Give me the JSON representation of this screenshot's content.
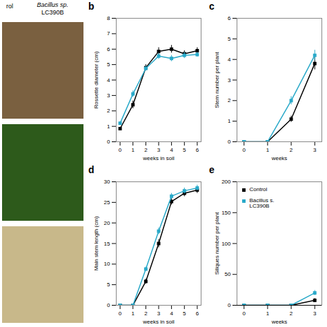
{
  "chart_data": [
    {
      "type": "line",
      "title": "b",
      "xlabel": "weeks in soil",
      "ylabel": "Rossette diameter (cm)",
      "x": [
        0,
        1,
        2,
        3,
        4,
        5,
        6
      ],
      "xlim": [
        -0.3,
        6.3
      ],
      "xticks": [
        0,
        1,
        2,
        3,
        4,
        5,
        6
      ],
      "ylim": [
        0,
        8
      ],
      "yticks": [
        0,
        1,
        2,
        3,
        4,
        5,
        6,
        7,
        8
      ],
      "marker": "square",
      "series": [
        {
          "name": "Control",
          "color": "#000000",
          "values": [
            0.85,
            2.4,
            4.8,
            5.85,
            6.0,
            5.7,
            5.9
          ],
          "errors": [
            0.1,
            0.25,
            0.2,
            0.25,
            0.25,
            0.2,
            0.2
          ]
        },
        {
          "name": "Bacillus s.\nLC390B",
          "color": "#29a9c9",
          "values": [
            1.2,
            3.1,
            4.75,
            5.55,
            5.4,
            5.6,
            5.65
          ],
          "errors": [
            0.1,
            0.2,
            0.15,
            0.2,
            0.2,
            0.2,
            0.15
          ]
        }
      ]
    },
    {
      "type": "line",
      "title": "c",
      "xlabel": "weeks",
      "ylabel": "Stem number per plant",
      "x": [
        0,
        1,
        2,
        3
      ],
      "xlim": [
        -0.3,
        3.3
      ],
      "xticks": [
        0,
        1,
        2,
        3
      ],
      "ylim": [
        0,
        6
      ],
      "yticks": [
        0,
        1,
        2,
        3,
        4,
        5,
        6
      ],
      "marker": "square",
      "series": [
        {
          "name": "Control",
          "color": "#000000",
          "values": [
            0.0,
            0.0,
            1.1,
            3.8
          ],
          "errors": [
            0.0,
            0.0,
            0.15,
            0.3
          ]
        },
        {
          "name": "Bacillus s.\nLC390B",
          "color": "#29a9c9",
          "values": [
            0.0,
            0.0,
            2.0,
            4.2
          ],
          "errors": [
            0.0,
            0.0,
            0.2,
            0.25
          ]
        }
      ]
    },
    {
      "type": "line",
      "title": "d",
      "xlabel": "weeks in soil",
      "ylabel": "Main stem length (cm)",
      "x": [
        0,
        1,
        2,
        3,
        4,
        5,
        6
      ],
      "xlim": [
        -0.3,
        6.3
      ],
      "xticks": [
        0,
        1,
        2,
        3,
        4,
        5,
        6
      ],
      "ylim": [
        0,
        30
      ],
      "yticks": [
        0,
        5,
        10,
        15,
        20,
        25,
        30
      ],
      "marker": "square",
      "series": [
        {
          "name": "Control",
          "color": "#000000",
          "values": [
            0.0,
            0.0,
            5.8,
            15.0,
            25.2,
            27.2,
            28.0
          ],
          "errors": [
            0.0,
            0.0,
            0.6,
            1.0,
            0.8,
            0.8,
            0.8
          ]
        },
        {
          "name": "Bacillus s.\nLC390B",
          "color": "#29a9c9",
          "values": [
            0.0,
            0.0,
            8.8,
            18.0,
            26.5,
            27.8,
            28.5
          ],
          "errors": [
            0.0,
            0.0,
            0.5,
            0.8,
            0.7,
            0.7,
            0.7
          ]
        }
      ]
    },
    {
      "type": "line",
      "title": "e",
      "xlabel": "weeks",
      "ylabel": "Siliques number per plant",
      "x": [
        0,
        1,
        2,
        3
      ],
      "xlim": [
        -0.3,
        3.3
      ],
      "xticks": [
        0,
        1,
        2,
        3
      ],
      "ylim": [
        0,
        200
      ],
      "yticks": [
        0,
        50,
        100,
        150,
        200
      ],
      "marker": "square",
      "legend": "upper left",
      "series": [
        {
          "name": "Control",
          "color": "#000000",
          "values": [
            0.0,
            0.0,
            0.0,
            8.0
          ],
          "errors": [
            0.0,
            0.0,
            0.0,
            3.0
          ]
        },
        {
          "name": "Bacillus s.\nLC390B",
          "color": "#29a9c9",
          "values": [
            0.0,
            0.0,
            0.0,
            20.0
          ],
          "errors": [
            0.0,
            0.0,
            0.0,
            4.0
          ]
        }
      ]
    }
  ],
  "annotations": [
    "rol",
    "Bacillus sp.",
    "LC390B"
  ],
  "colors": [
    "#7a6040",
    "#2d5a1b",
    "#c8b88a"
  ]
}
